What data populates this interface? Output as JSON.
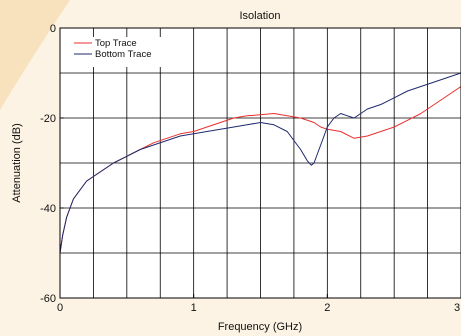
{
  "chart_data": {
    "type": "line",
    "title": "Isolation",
    "xlabel": "Frequency (GHz)",
    "ylabel": "Attenuation (dB)",
    "xlim": [
      0,
      3
    ],
    "ylim": [
      -60,
      0
    ],
    "x_ticks": [
      0,
      1,
      2,
      3
    ],
    "x_tick_labels": [
      "0",
      "1",
      "2",
      "3"
    ],
    "y_ticks": [
      0,
      -20,
      -40,
      -60
    ],
    "y_tick_labels": [
      "0",
      "-20",
      "-40",
      "-60"
    ],
    "x_grid_step": 0.25,
    "y_grid_step": 10,
    "grid": true,
    "legend_position": "top-left",
    "series": [
      {
        "name": "Top Trace",
        "color": "#e8312f",
        "x": [
          0,
          0.02,
          0.05,
          0.1,
          0.15,
          0.2,
          0.3,
          0.4,
          0.5,
          0.6,
          0.7,
          0.8,
          0.9,
          1.0,
          1.1,
          1.2,
          1.3,
          1.4,
          1.5,
          1.6,
          1.7,
          1.8,
          1.9,
          1.95,
          2.0,
          2.1,
          2.2,
          2.3,
          2.4,
          2.5,
          2.6,
          2.7,
          2.8,
          2.9,
          3.0
        ],
        "y": [
          -50,
          -46,
          -42,
          -38,
          -36,
          -34,
          -32,
          -30,
          -28.5,
          -27,
          -25.5,
          -24.5,
          -23.5,
          -23,
          -22,
          -21,
          -20,
          -19.5,
          -19.3,
          -19,
          -19.5,
          -20,
          -21,
          -22,
          -22.5,
          -23,
          -24.5,
          -24,
          -23,
          -22,
          -20.5,
          -19,
          -17,
          -15,
          -13
        ]
      },
      {
        "name": "Bottom Trace",
        "color": "#1f2a6e",
        "x": [
          0,
          0.02,
          0.05,
          0.1,
          0.15,
          0.2,
          0.3,
          0.4,
          0.5,
          0.6,
          0.7,
          0.8,
          0.9,
          1.0,
          1.1,
          1.2,
          1.3,
          1.4,
          1.5,
          1.6,
          1.7,
          1.75,
          1.8,
          1.85,
          1.88,
          1.9,
          1.95,
          2.0,
          2.05,
          2.1,
          2.15,
          2.2,
          2.3,
          2.4,
          2.5,
          2.6,
          2.7,
          2.8,
          2.9,
          3.0
        ],
        "y": [
          -50,
          -46,
          -42,
          -38,
          -36,
          -34,
          -32,
          -30,
          -28.5,
          -27,
          -26,
          -25,
          -24,
          -23.5,
          -23,
          -22.5,
          -22,
          -21.5,
          -21,
          -21.5,
          -23,
          -25,
          -27,
          -29.5,
          -30.5,
          -30,
          -26,
          -22,
          -20,
          -19,
          -19.5,
          -20,
          -18,
          -17,
          -15.5,
          -14,
          -13,
          -12,
          -11,
          -10
        ]
      }
    ]
  }
}
